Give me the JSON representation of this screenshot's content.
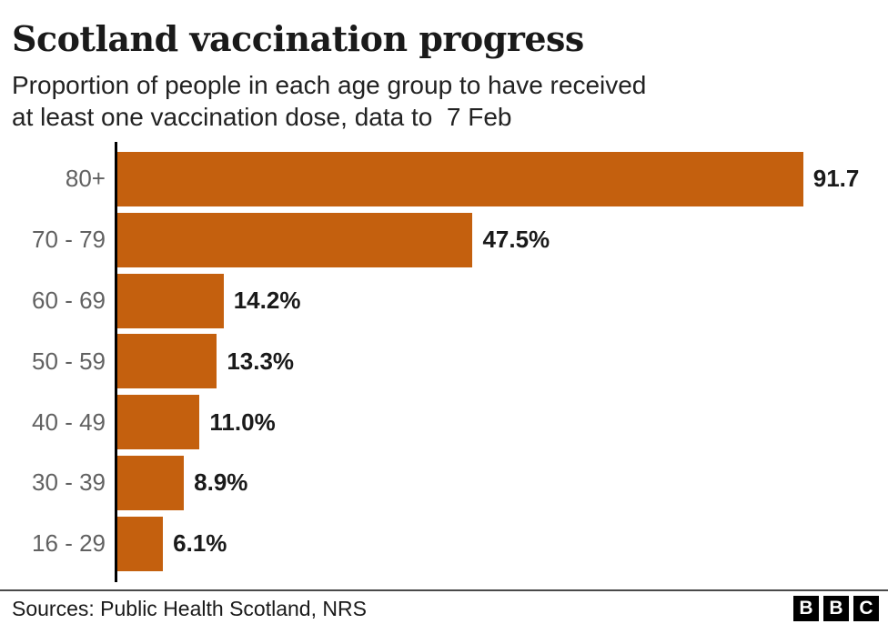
{
  "header": {
    "title": "Scotland vaccination progress",
    "subtitle_line1": "Proportion of people in each age group to have received",
    "subtitle_line2": "at least one vaccination dose, data to  7 Feb"
  },
  "chart_data": {
    "type": "bar",
    "orientation": "horizontal",
    "title": "Scotland vaccination progress",
    "subtitle": "Proportion of people in each age group to have received at least one vaccination dose, data to 7 Feb",
    "categories": [
      "80+",
      "70 - 79",
      "60 - 69",
      "50 - 59",
      "40 - 49",
      "30 - 39",
      "16 - 29"
    ],
    "values": [
      91.7,
      47.5,
      14.2,
      13.3,
      11.0,
      8.9,
      6.1
    ],
    "value_labels": [
      "91.7",
      "47.5%",
      "14.2%",
      "13.3%",
      "11.0%",
      "8.9%",
      "6.1%"
    ],
    "xlabel": "",
    "ylabel": "",
    "xlim": [
      0,
      100
    ],
    "grid": false,
    "legend": false,
    "bar_color": "#c4600e"
  },
  "footer": {
    "sources": "Sources: Public Health Scotland, NRS",
    "logo_letters": [
      "B",
      "B",
      "C"
    ]
  },
  "colors": {
    "bar": "#c4600e",
    "title": "#1a1a1a",
    "category_label": "#616161",
    "value_label": "#1a1a1a",
    "axis": "#000000",
    "divider": "#4a4a4a"
  }
}
